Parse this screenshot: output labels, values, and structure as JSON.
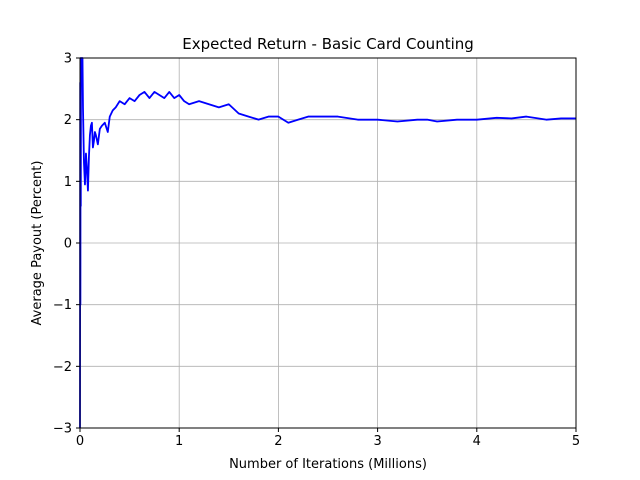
{
  "chart_data": {
    "type": "line",
    "title": "Expected Return - Basic Card Counting",
    "xlabel": "Number of Iterations (Millions)",
    "ylabel": "Average Payout (Percent)",
    "xlim": [
      0,
      5
    ],
    "ylim": [
      -3,
      3
    ],
    "x_ticks": [
      0,
      1,
      2,
      3,
      4,
      5
    ],
    "x_tick_labels": [
      "0",
      "1",
      "2",
      "3",
      "4",
      "5"
    ],
    "y_ticks": [
      -3,
      -2,
      -1,
      0,
      1,
      2,
      3
    ],
    "y_tick_labels": [
      "−3",
      "−2",
      "−1",
      "0",
      "1",
      "2",
      "3"
    ],
    "grid": true,
    "series": [
      {
        "color": "#0000ff",
        "x": [
          0.0,
          0.002,
          0.004,
          0.006,
          0.008,
          0.01,
          0.015,
          0.02,
          0.025,
          0.03,
          0.04,
          0.05,
          0.06,
          0.07,
          0.08,
          0.09,
          0.1,
          0.11,
          0.12,
          0.13,
          0.14,
          0.15,
          0.16,
          0.18,
          0.2,
          0.22,
          0.25,
          0.28,
          0.3,
          0.33,
          0.36,
          0.4,
          0.45,
          0.5,
          0.55,
          0.6,
          0.65,
          0.7,
          0.75,
          0.8,
          0.85,
          0.9,
          0.95,
          1.0,
          1.05,
          1.1,
          1.2,
          1.3,
          1.4,
          1.5,
          1.6,
          1.7,
          1.8,
          1.9,
          2.0,
          2.1,
          2.2,
          2.3,
          2.4,
          2.5,
          2.6,
          2.8,
          3.0,
          3.2,
          3.4,
          3.5,
          3.6,
          3.8,
          4.0,
          4.2,
          4.35,
          4.5,
          4.7,
          4.85,
          5.0
        ],
        "y": [
          -3.0,
          2.6,
          -1.0,
          3.0,
          0.6,
          2.9,
          3.0,
          2.7,
          3.0,
          2.2,
          1.3,
          0.95,
          1.45,
          1.2,
          0.85,
          1.4,
          1.75,
          1.9,
          1.95,
          1.55,
          1.65,
          1.8,
          1.75,
          1.6,
          1.85,
          1.9,
          1.95,
          1.8,
          2.05,
          2.15,
          2.2,
          2.3,
          2.25,
          2.35,
          2.3,
          2.4,
          2.45,
          2.35,
          2.45,
          2.4,
          2.35,
          2.45,
          2.35,
          2.4,
          2.3,
          2.25,
          2.3,
          2.25,
          2.2,
          2.25,
          2.1,
          2.05,
          2.0,
          2.05,
          2.05,
          1.95,
          2.0,
          2.05,
          2.05,
          2.05,
          2.05,
          2.0,
          2.0,
          1.97,
          2.0,
          2.0,
          1.97,
          2.0,
          2.0,
          2.03,
          2.02,
          2.05,
          2.0,
          2.02,
          2.02
        ]
      }
    ]
  }
}
